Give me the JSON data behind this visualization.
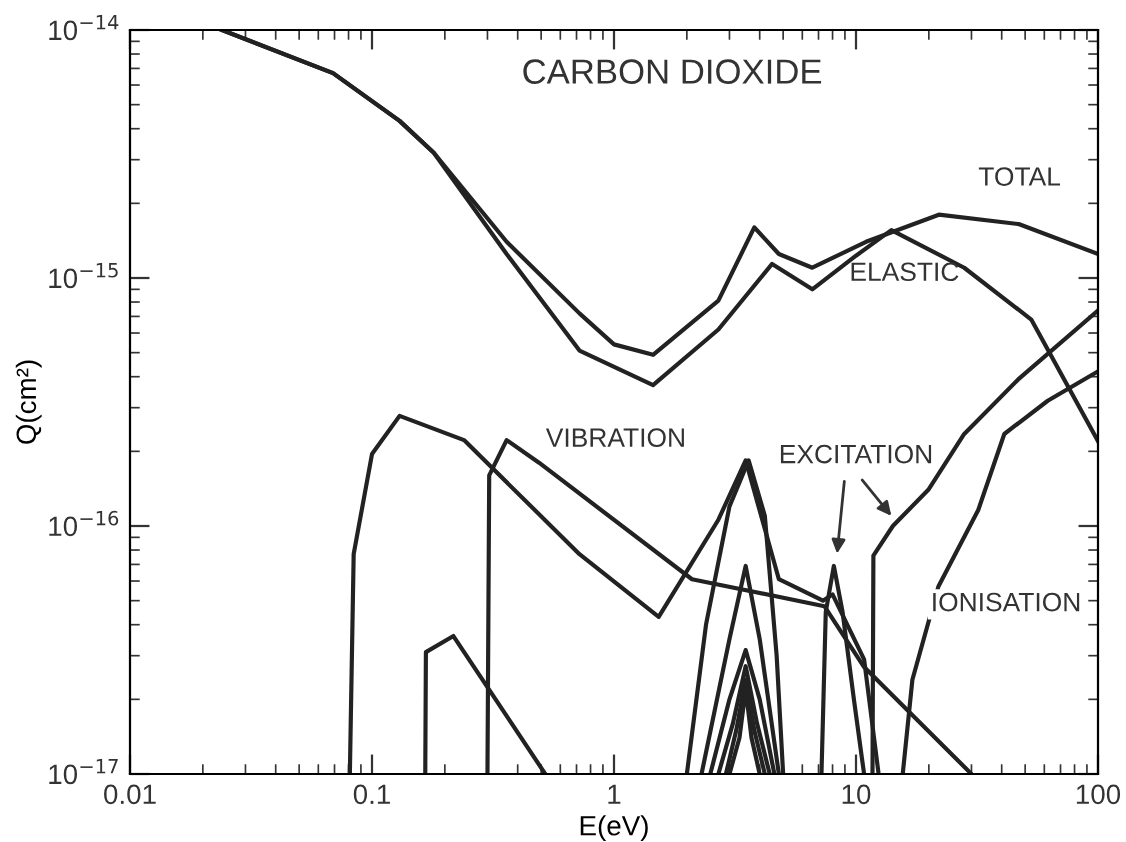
{
  "chart_data": {
    "type": "line",
    "title": "CARBON DIOXIDE",
    "xlabel": "E(eV)",
    "ylabel": "Q(cm²)",
    "log": "xy",
    "grid": false,
    "marker": "none",
    "line_style": "solid",
    "xlim": [
      0.01,
      100
    ],
    "ylim": [
      1e-17,
      1e-14
    ],
    "xticks": [
      0.01,
      0.1,
      1,
      10,
      100
    ],
    "yticks": [
      {
        "value": 1e-17,
        "label": "10$^{−17}$"
      },
      {
        "value": 1e-16,
        "label": "10$^{−16}$"
      },
      {
        "value": 1e-15,
        "label": "10$^{−15}$"
      },
      {
        "value": 1e-14,
        "label": "10$^{−14}$"
      }
    ],
    "annotations": [
      "TOTAL",
      "ELASTIC",
      "VIBRATION",
      "EXCITATION",
      "IONISATION"
    ],
    "series": [
      {
        "color": "#222222",
        "x": [
          0.024,
          0.069,
          0.13,
          0.18,
          0.36,
          0.72,
          1.0,
          1.45,
          2.7,
          3.8,
          4.8,
          6.6,
          11,
          22,
          47,
          100
        ],
        "values": [
          1e-14,
          6.7e-15,
          4.3e-15,
          3.2e-15,
          1.4e-15,
          7.2e-16,
          5.4e-16,
          4.9e-16,
          8.1e-16,
          1.6e-15,
          1.25e-15,
          1.1e-15,
          1.4e-15,
          1.8e-15,
          1.65e-15,
          1.25e-15
        ]
      },
      {
        "color": "#222222",
        "x": [
          0.024,
          0.069,
          0.13,
          0.18,
          0.36,
          0.72,
          1.45,
          2.7,
          4.5,
          6.6,
          10,
          14,
          28,
          53,
          100
        ],
        "values": [
          1e-14,
          6.7e-15,
          4.3e-15,
          3.2e-15,
          1.25e-15,
          5.1e-16,
          3.7e-16,
          6.2e-16,
          1.14e-15,
          9e-16,
          1.23e-15,
          1.56e-15,
          1.1e-15,
          6.8e-16,
          2.2e-16
        ]
      },
      {
        "color": "#222222",
        "x": [
          0.081,
          0.084,
          0.1,
          0.13,
          0.24,
          0.72,
          1.53,
          2.7,
          3.5,
          4.8,
          7.3,
          8.0,
          10.8,
          12.4
        ],
        "values": [
          1e-17,
          7.7e-17,
          1.95e-16,
          2.78e-16,
          2.22e-16,
          7.7e-17,
          4.3e-17,
          1.06e-16,
          1.84e-16,
          6.1e-17,
          5e-17,
          5.3e-17,
          2.9e-17,
          1e-17
        ]
      },
      {
        "color": "#222222",
        "x": [
          0.3,
          0.305,
          0.36,
          0.49,
          2.1,
          7.4,
          10.8,
          30
        ],
        "values": [
          1e-17,
          1.6e-16,
          2.22e-16,
          1.8e-16,
          6.1e-17,
          4.75e-17,
          2.7e-17,
          1e-17
        ]
      },
      {
        "color": "#222222",
        "x": [
          0.166,
          0.167,
          0.217,
          0.52
        ],
        "values": [
          1e-17,
          3.1e-17,
          3.6e-17,
          1e-17
        ]
      },
      {
        "color": "#222222",
        "x": [
          2.0,
          2.4,
          3.0,
          3.6,
          4.2,
          4.7,
          5.0
        ],
        "values": [
          1e-17,
          4e-17,
          1.2e-16,
          1.84e-16,
          1.1e-16,
          3e-17,
          1e-17
        ]
      },
      {
        "color": "#222222",
        "x": [
          2.3,
          3.0,
          3.5,
          4.0,
          4.8
        ],
        "values": [
          1e-17,
          3.5e-17,
          6.9e-17,
          3.5e-17,
          1e-17
        ]
      },
      {
        "color": "#222222",
        "x": [
          2.5,
          3.0,
          3.5,
          4.0,
          4.6
        ],
        "values": [
          1e-17,
          2e-17,
          3.16e-17,
          2e-17,
          1e-17
        ]
      },
      {
        "color": "#222222",
        "x": [
          2.7,
          3.1,
          3.5,
          3.9,
          4.4
        ],
        "values": [
          1e-17,
          1.6e-17,
          2.72e-17,
          1.6e-17,
          1e-17
        ]
      },
      {
        "color": "#222222",
        "x": [
          2.9,
          3.2,
          3.5,
          3.8,
          4.2
        ],
        "values": [
          1e-17,
          1.5e-17,
          2.4e-17,
          1.5e-17,
          1e-17
        ]
      },
      {
        "color": "#222222",
        "x": [
          3.0,
          3.3,
          3.5,
          3.7,
          4.0
        ],
        "values": [
          1e-17,
          1.4e-17,
          2.2e-17,
          1.4e-17,
          1e-17
        ]
      },
      {
        "color": "#222222",
        "x": [
          7.2,
          7.5,
          8.1,
          8.8,
          9.8,
          10.8
        ],
        "values": [
          1e-17,
          4.5e-17,
          6.9e-17,
          4.5e-17,
          2e-17,
          1e-17
        ]
      },
      {
        "color": "#222222",
        "x": [
          11.7,
          11.8,
          14.2,
          19.9,
          28,
          46.8,
          100
        ],
        "values": [
          1e-17,
          7.6e-17,
          1e-16,
          1.4e-16,
          2.35e-16,
          3.9e-16,
          7.4e-16
        ]
      },
      {
        "color": "#222222",
        "x": [
          15.6,
          17.1,
          21.9,
          32,
          41,
          62,
          100
        ],
        "values": [
          1e-17,
          2.4e-17,
          5.7e-17,
          1.16e-16,
          2.35e-16,
          3.2e-16,
          4.2e-16
        ]
      }
    ]
  }
}
